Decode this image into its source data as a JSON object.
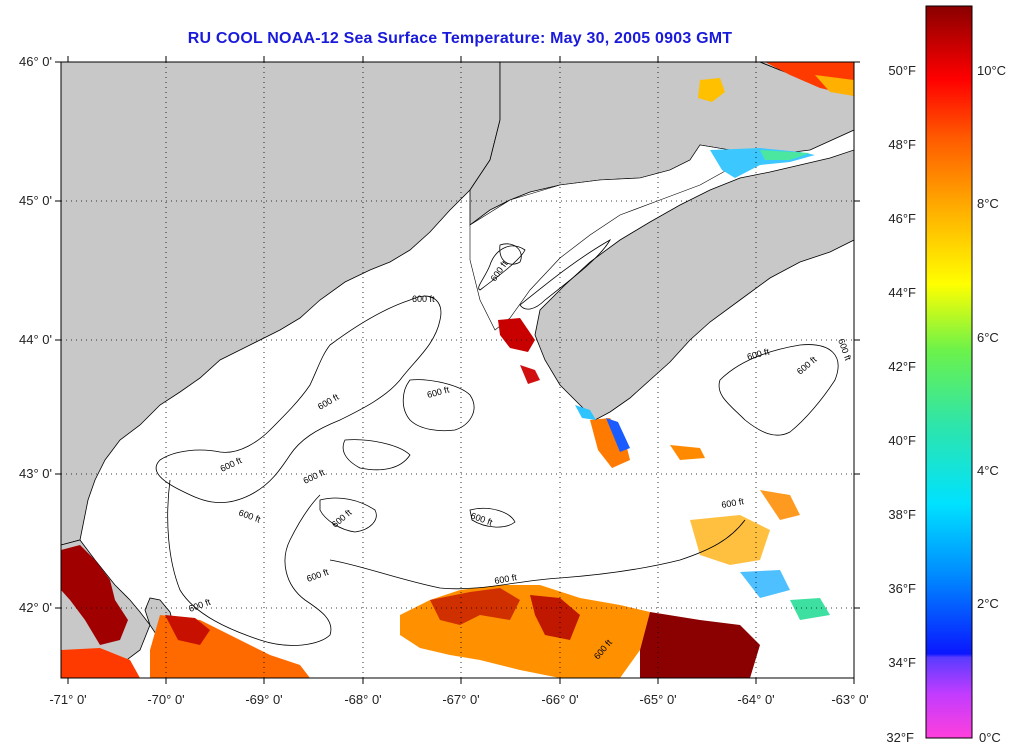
{
  "title": "RU COOL  NOAA-12  Sea Surface Temperature:  May 30, 2005 0903 GMT",
  "lat_labels": [
    "46° 0'",
    "45° 0'",
    "44° 0'",
    "43° 0'",
    "42° 0'"
  ],
  "lon_labels": [
    "-71° 0'",
    "-70° 0'",
    "-69° 0'",
    "-68° 0'",
    "-67° 0'",
    "-66° 0'",
    "-65° 0'",
    "-64° 0'",
    "-63° 0'"
  ],
  "contour_label": "600 ft",
  "colorbar": {
    "fahrenheit": [
      "50°F",
      "48°F",
      "46°F",
      "44°F",
      "42°F",
      "40°F",
      "38°F",
      "36°F",
      "34°F",
      "32°F"
    ],
    "celsius": [
      "10°C",
      "8°C",
      "6°C",
      "4°C",
      "2°C",
      "0°C"
    ]
  },
  "colors": {
    "land": "#c8c8c8",
    "water": "#ffffff",
    "title": "#1a1adb",
    "grid": "#000000"
  }
}
